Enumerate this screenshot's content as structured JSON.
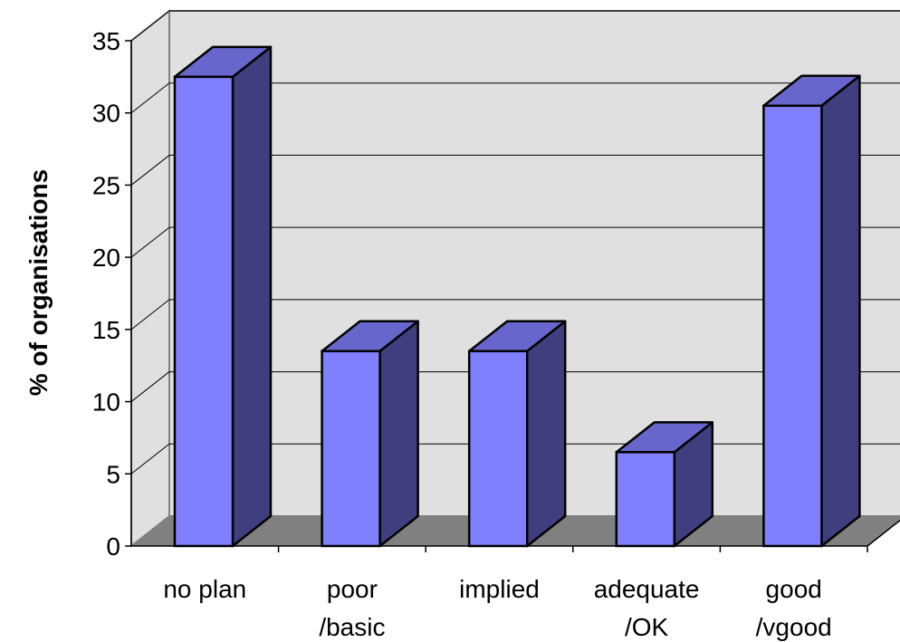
{
  "chart_data": {
    "type": "bar",
    "categories": [
      [
        "no plan"
      ],
      [
        "poor",
        "/basic"
      ],
      [
        "implied"
      ],
      [
        "adequate",
        "/OK"
      ],
      [
        "good",
        "/vgood"
      ]
    ],
    "values": [
      32.5,
      13.5,
      13.5,
      6.5,
      30.5
    ],
    "ylabel": "% of organisations",
    "xlabel": "",
    "ylim": [
      0,
      35
    ],
    "yticks": [
      0,
      5,
      10,
      15,
      20,
      25,
      30,
      35
    ],
    "grid": true,
    "legend": "none",
    "colors": {
      "front": "#8080ff",
      "top": "#6666cc",
      "side": "#3f3f7f",
      "wall": "#e0e0e0",
      "floor": "#808080"
    }
  }
}
